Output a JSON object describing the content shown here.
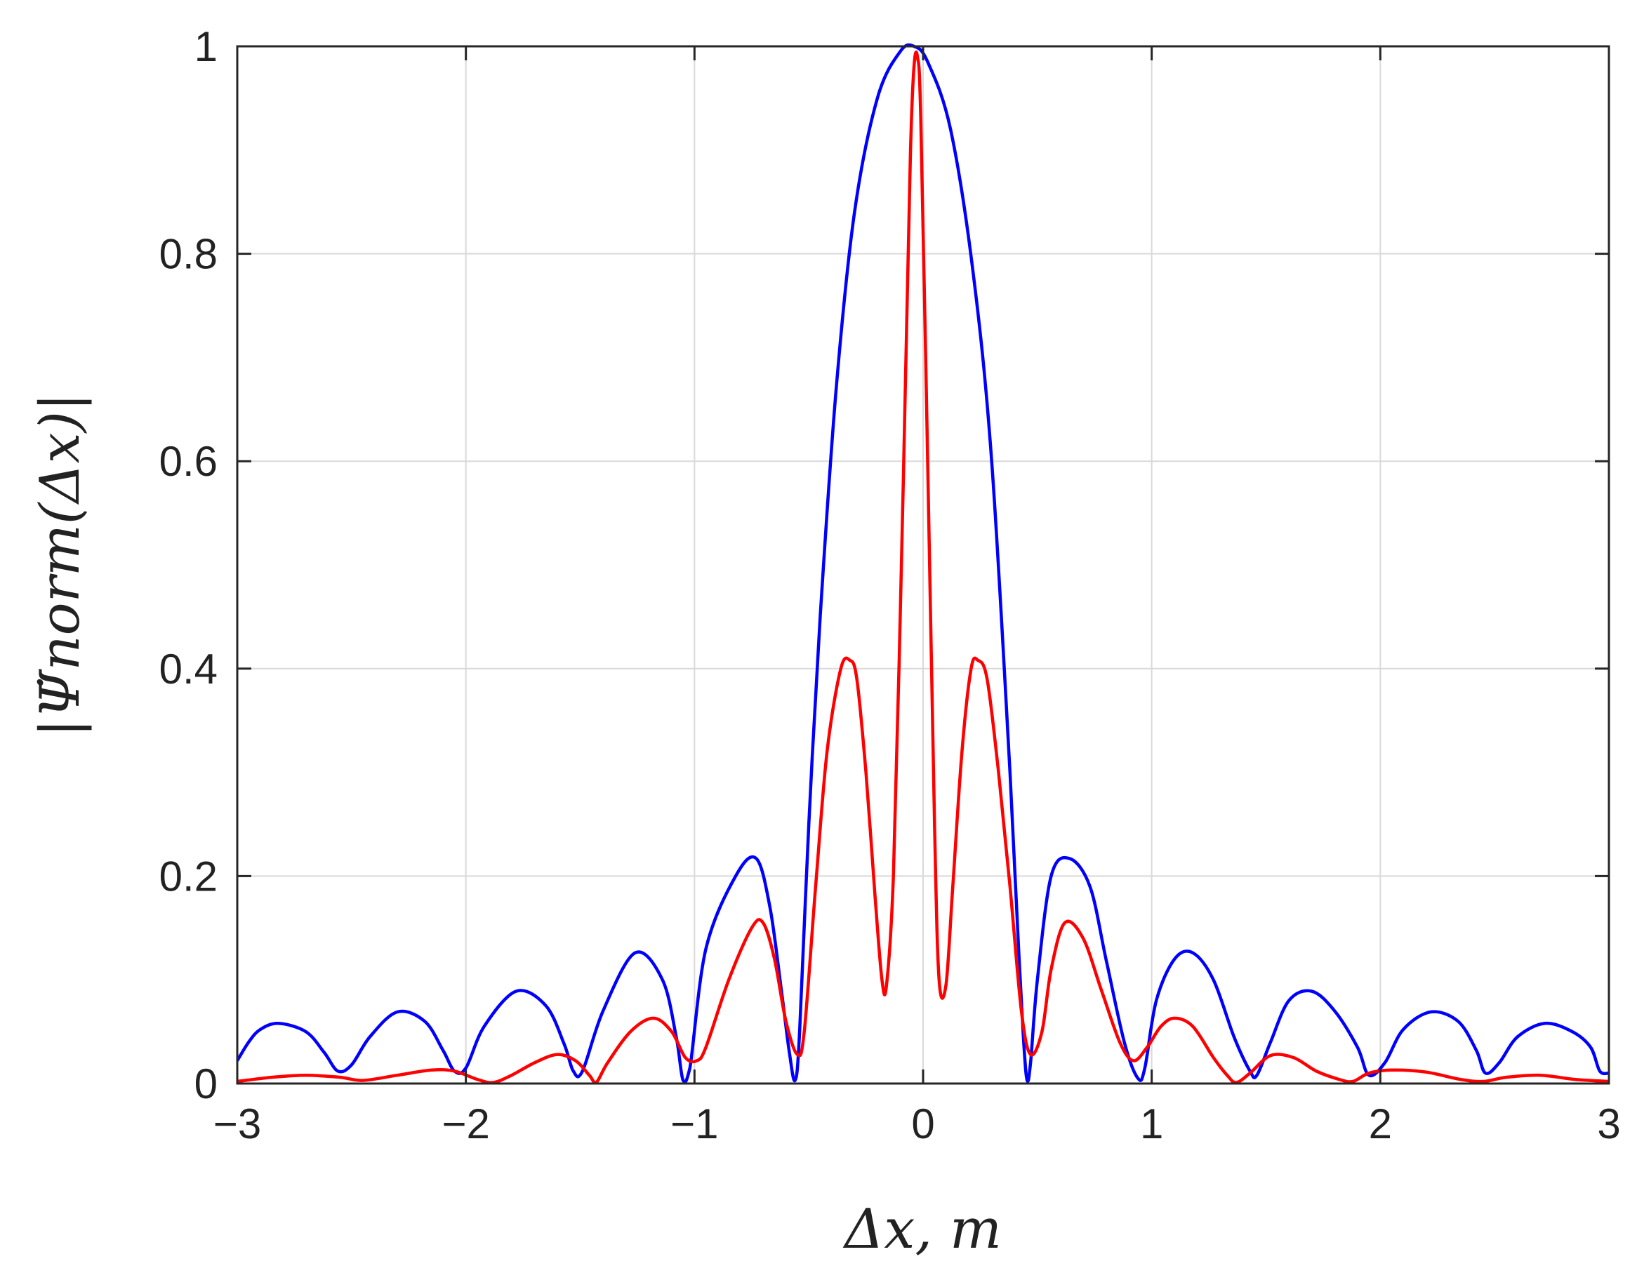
{
  "chart_data": {
    "type": "line",
    "xlabel": "Δx, m",
    "ylabel": "|Ψ̇norm(Δx)|",
    "xlim": [
      -3,
      3
    ],
    "ylim": [
      0,
      1
    ],
    "xticks": [
      -3,
      -2,
      -1,
      0,
      1,
      2,
      3
    ],
    "xtick_labels": [
      "−3",
      "−2",
      "−1",
      "0",
      "1",
      "2",
      "3"
    ],
    "yticks": [
      0,
      0.2,
      0.4,
      0.6,
      0.8,
      1
    ],
    "ytick_labels": [
      "0",
      "0.2",
      "0.4",
      "0.6",
      "0.8",
      "1"
    ],
    "grid": true,
    "legend": "none",
    "series": [
      {
        "color": "#0000ff",
        "x": [
          -3.0,
          -2.95,
          -2.9,
          -2.82,
          -2.7,
          -2.62,
          -2.56,
          -2.5,
          -2.42,
          -2.3,
          -2.18,
          -2.1,
          -2.05,
          -2.0,
          -1.92,
          -1.78,
          -1.65,
          -1.57,
          -1.53,
          -1.49,
          -1.4,
          -1.26,
          -1.14,
          -1.08,
          -1.05,
          -1.02,
          -0.95,
          -0.82,
          -0.73,
          -0.67,
          -0.62,
          -0.585,
          -0.56,
          -0.54,
          -0.5,
          -0.45,
          -0.38,
          -0.3,
          -0.2,
          -0.1,
          -0.04,
          0.02,
          0.12,
          0.22,
          0.3,
          0.38,
          0.42,
          0.44,
          0.455,
          0.47,
          0.5,
          0.56,
          0.64,
          0.73,
          0.8,
          0.88,
          0.94,
          0.97,
          1.02,
          1.1,
          1.18,
          1.27,
          1.36,
          1.43,
          1.46,
          1.52,
          1.6,
          1.7,
          1.8,
          1.9,
          1.95,
          2.02,
          2.1,
          2.22,
          2.34,
          2.42,
          2.46,
          2.52,
          2.6,
          2.72,
          2.84,
          2.92,
          2.96,
          3.0
        ],
        "y": [
          0.022,
          0.04,
          0.052,
          0.058,
          0.05,
          0.03,
          0.012,
          0.018,
          0.045,
          0.069,
          0.06,
          0.032,
          0.012,
          0.015,
          0.055,
          0.089,
          0.075,
          0.038,
          0.012,
          0.012,
          0.07,
          0.126,
          0.1,
          0.045,
          0.003,
          0.015,
          0.13,
          0.2,
          0.217,
          0.17,
          0.09,
          0.03,
          0.003,
          0.05,
          0.25,
          0.45,
          0.67,
          0.84,
          0.95,
          0.995,
          1.0,
          0.985,
          0.92,
          0.78,
          0.6,
          0.3,
          0.12,
          0.04,
          0.003,
          0.02,
          0.1,
          0.2,
          0.217,
          0.19,
          0.12,
          0.04,
          0.005,
          0.015,
          0.08,
          0.12,
          0.126,
          0.1,
          0.045,
          0.012,
          0.008,
          0.04,
          0.08,
          0.089,
          0.07,
          0.035,
          0.008,
          0.02,
          0.052,
          0.069,
          0.06,
          0.032,
          0.01,
          0.02,
          0.045,
          0.058,
          0.05,
          0.035,
          0.012,
          0.01
        ]
      },
      {
        "color": "#ff0000",
        "x": [
          -3.0,
          -2.85,
          -2.7,
          -2.55,
          -2.45,
          -2.3,
          -2.15,
          -2.05,
          -1.95,
          -1.88,
          -1.8,
          -1.7,
          -1.6,
          -1.52,
          -1.46,
          -1.43,
          -1.38,
          -1.28,
          -1.18,
          -1.1,
          -1.04,
          -0.99,
          -0.95,
          -0.85,
          -0.75,
          -0.7,
          -0.65,
          -0.6,
          -0.55,
          -0.52,
          -0.47,
          -0.42,
          -0.36,
          -0.32,
          -0.29,
          -0.25,
          -0.21,
          -0.18,
          -0.16,
          -0.13,
          -0.1,
          -0.07,
          -0.055,
          -0.04,
          -0.025,
          -0.01,
          0.02,
          0.05,
          0.07,
          0.1,
          0.13,
          0.17,
          0.21,
          0.24,
          0.28,
          0.33,
          0.38,
          0.43,
          0.47,
          0.52,
          0.56,
          0.62,
          0.7,
          0.78,
          0.86,
          0.92,
          0.98,
          1.04,
          1.1,
          1.18,
          1.27,
          1.33,
          1.37,
          1.43,
          1.52,
          1.62,
          1.72,
          1.82,
          1.88,
          1.95,
          2.05,
          2.2,
          2.35,
          2.45,
          2.55,
          2.7,
          2.85,
          3.0
        ],
        "y": [
          0.002,
          0.006,
          0.008,
          0.006,
          0.003,
          0.008,
          0.013,
          0.012,
          0.004,
          0.001,
          0.008,
          0.02,
          0.028,
          0.022,
          0.008,
          0.001,
          0.02,
          0.05,
          0.063,
          0.05,
          0.025,
          0.022,
          0.035,
          0.1,
          0.15,
          0.155,
          0.12,
          0.06,
          0.028,
          0.05,
          0.19,
          0.32,
          0.4,
          0.408,
          0.39,
          0.3,
          0.18,
          0.1,
          0.095,
          0.2,
          0.45,
          0.75,
          0.9,
          0.98,
          0.99,
          0.93,
          0.6,
          0.25,
          0.1,
          0.095,
          0.19,
          0.32,
          0.4,
          0.408,
          0.39,
          0.3,
          0.19,
          0.07,
          0.028,
          0.05,
          0.11,
          0.155,
          0.14,
          0.09,
          0.04,
          0.022,
          0.035,
          0.055,
          0.063,
          0.055,
          0.025,
          0.008,
          0.001,
          0.01,
          0.027,
          0.025,
          0.012,
          0.004,
          0.002,
          0.01,
          0.013,
          0.011,
          0.004,
          0.002,
          0.006,
          0.008,
          0.004,
          0.002
        ]
      }
    ]
  }
}
